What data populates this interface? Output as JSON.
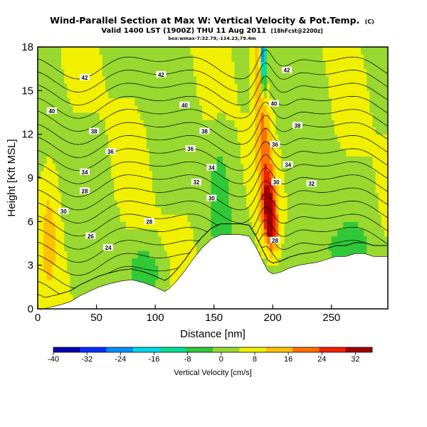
{
  "chart_data": {
    "type": "heatmap",
    "title": "Wind-Parallel Section at Max W: Vertical Velocity & Pot.Temp.",
    "title_mark": "(C)",
    "subtitle": "Valid 1400 LST (1900Z) THU 11 Aug 2011",
    "subtitle_note": "[18hFcst@2200z]",
    "subtitle2": "box:wmax-7:32.79,-114.23,79.4m",
    "xlabel": "Distance [nm]",
    "ylabel": "Height [Kft MSL]",
    "xlim": [
      0,
      298
    ],
    "ylim": [
      0,
      18
    ],
    "x_ticks": [
      0,
      50,
      100,
      150,
      200,
      250
    ],
    "y_ticks": [
      0,
      3,
      6,
      9,
      12,
      15,
      18
    ],
    "colorbar": {
      "label": "Vertical Velocity [cm/s]",
      "ticks": [
        -40,
        -32,
        -24,
        -16,
        -8,
        0,
        8,
        16,
        24,
        32
      ],
      "range": [
        -40,
        36
      ],
      "colors": [
        "#0000b0",
        "#0030ff",
        "#0090ff",
        "#00d8e8",
        "#00e098",
        "#30c838",
        "#98d830",
        "#f0f000",
        "#ffc000",
        "#ff7000",
        "#f02000",
        "#a00000"
      ]
    },
    "terrain": {
      "x": [
        0,
        5,
        10,
        15,
        20,
        28,
        36,
        44,
        52,
        60,
        70,
        80,
        90,
        100,
        108,
        112,
        118,
        125,
        132,
        140,
        148,
        156,
        164,
        172,
        180,
        186,
        192,
        196,
        200,
        206,
        214,
        222,
        230,
        238,
        246,
        254,
        262,
        270,
        278,
        286,
        298
      ],
      "y": [
        0.0,
        0.0,
        0.1,
        0.2,
        0.3,
        0.5,
        0.9,
        1.2,
        1.5,
        1.7,
        1.9,
        2.0,
        1.8,
        1.5,
        1.2,
        1.4,
        1.9,
        2.6,
        3.4,
        4.2,
        4.8,
        5.1,
        5.1,
        5.1,
        5.0,
        4.2,
        3.2,
        2.6,
        2.4,
        2.5,
        2.8,
        3.0,
        3.1,
        3.2,
        3.4,
        3.6,
        3.6,
        3.8,
        3.8,
        3.6,
        3.6
      ]
    },
    "updraft": {
      "x": 195,
      "half_width_nm": 6.5,
      "top": 18,
      "bottom": 2.6,
      "w_max": 32,
      "w_min": -24
    },
    "theta_contours": [
      {
        "value": 26,
        "label_x": 45,
        "label_y": 5.0
      },
      {
        "value": 28,
        "label_x": 95,
        "label_y": 6.0
      },
      {
        "value": 30,
        "label_x": 148,
        "label_y": 7.6
      },
      {
        "value": 32,
        "label_x": 135,
        "label_y": 8.7
      },
      {
        "value": 34,
        "label_x": 148,
        "label_y": 9.7
      },
      {
        "value": 36,
        "label_x": 130,
        "label_y": 11.0
      },
      {
        "value": 38,
        "label_x": 142,
        "label_y": 12.2
      },
      {
        "value": 40,
        "label_x": 12,
        "label_y": 13.6
      },
      {
        "value": 42,
        "label_x": 40,
        "label_y": 15.9
      }
    ],
    "theta_labels_extra": [
      {
        "value": 24,
        "x": 60,
        "y": 4.2
      },
      {
        "value": 28,
        "x": 40,
        "y": 8.1
      },
      {
        "value": 30,
        "x": 22,
        "y": 6.7
      },
      {
        "value": 34,
        "x": 40,
        "y": 9.4
      },
      {
        "value": 36,
        "x": 62,
        "y": 10.8
      },
      {
        "value": 38,
        "x": 48,
        "y": 12.2
      },
      {
        "value": 42,
        "x": 105,
        "y": 16.1
      },
      {
        "value": 40,
        "x": 125,
        "y": 14.0
      },
      {
        "value": 30,
        "x": 203,
        "y": 8.7
      },
      {
        "value": 28,
        "x": 202,
        "y": 4.7
      },
      {
        "value": 32,
        "x": 233,
        "y": 8.6
      },
      {
        "value": 34,
        "x": 213,
        "y": 9.9
      },
      {
        "value": 36,
        "x": 202,
        "y": 11.3
      },
      {
        "value": 38,
        "x": 221,
        "y": 12.6
      },
      {
        "value": 40,
        "x": 201,
        "y": 14.1
      },
      {
        "value": 42,
        "x": 212,
        "y": 16.4
      }
    ]
  }
}
